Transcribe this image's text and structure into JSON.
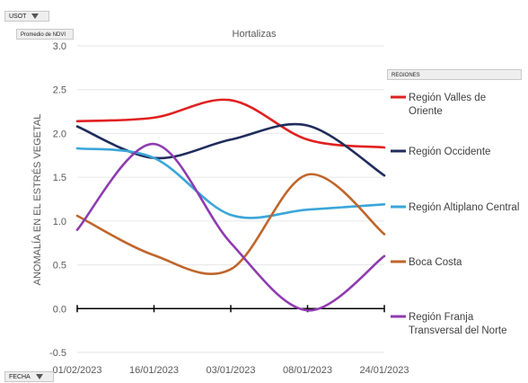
{
  "field_buttons": {
    "usot": "USOT",
    "measure": "Promedio de NDVI",
    "regiones": "REGIONES",
    "fecha": "FECHA"
  },
  "chart_data": {
    "type": "line",
    "title": "Hortalizas",
    "xlabel": "",
    "ylabel": "ANOMALÍA EN EL ESTRÉS VEGETAL",
    "categories": [
      "01/02/2023",
      "16/01/2023",
      "03/01/2023",
      "08/01/2023",
      "24/01/2023"
    ],
    "ylim": [
      -0.5,
      3.0
    ],
    "yticks": [
      "3.0",
      "2.5",
      "2.0",
      "1.5",
      "1.0",
      "0.5",
      "0.0",
      "-0.5"
    ],
    "grid": true,
    "legend_position": "right",
    "legend_title": "REGIONES",
    "series": [
      {
        "name": "Región Valles de Oriente",
        "color": "#e02020",
        "values": [
          2.14,
          2.18,
          2.38,
          1.93,
          1.84
        ]
      },
      {
        "name": "Región Occidente",
        "color": "#1f2d5c",
        "values": [
          2.08,
          1.72,
          1.93,
          2.09,
          1.52
        ]
      },
      {
        "name": "Región Altiplano Central",
        "color": "#3aa6d8",
        "values": [
          1.83,
          1.72,
          1.07,
          1.13,
          1.19
        ]
      },
      {
        "name": "Boca Costa",
        "color": "#c0652a",
        "values": [
          1.06,
          0.61,
          0.45,
          1.53,
          0.85
        ]
      },
      {
        "name": "Región Franja Transversal del Norte",
        "color": "#8e3bb0",
        "values": [
          0.9,
          1.88,
          0.75,
          -0.02,
          0.6
        ]
      }
    ]
  }
}
